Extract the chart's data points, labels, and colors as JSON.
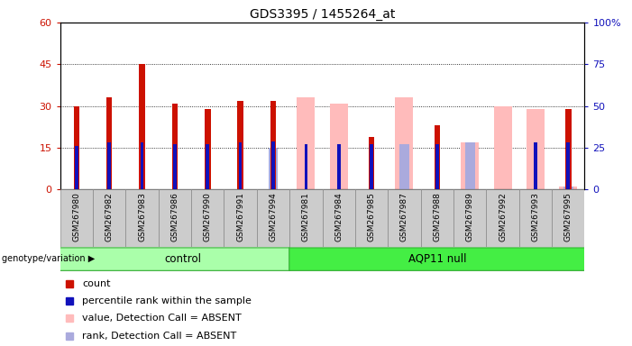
{
  "title": "GDS3395 / 1455264_at",
  "samples": [
    "GSM267980",
    "GSM267982",
    "GSM267983",
    "GSM267986",
    "GSM267990",
    "GSM267991",
    "GSM267994",
    "GSM267981",
    "GSM267984",
    "GSM267985",
    "GSM267987",
    "GSM267988",
    "GSM267989",
    "GSM267992",
    "GSM267993",
    "GSM267995"
  ],
  "n_control": 7,
  "count": [
    30,
    33,
    45,
    31,
    29,
    32,
    32,
    0,
    0,
    19,
    0,
    23,
    0,
    0,
    0,
    29
  ],
  "percentile_rank": [
    26,
    28,
    28,
    27,
    27,
    28,
    29,
    27,
    27,
    27,
    0,
    27,
    0,
    0,
    28,
    28
  ],
  "absent_value": [
    0,
    0,
    0,
    0,
    0,
    0,
    0,
    33,
    31,
    0,
    33,
    0,
    17,
    30,
    29,
    1
  ],
  "absent_rank": [
    0,
    0,
    0,
    0,
    0,
    0,
    25,
    0,
    0,
    0,
    27,
    0,
    28,
    0,
    0,
    2
  ],
  "bar_color_red": "#cc1100",
  "bar_color_blue": "#1111bb",
  "bar_color_pink": "#ffbbbb",
  "bar_color_light_blue": "#aaaadd",
  "control_color": "#aaffaa",
  "aqp11_color": "#44ee44",
  "bg_color": "#cccccc",
  "left_ylim": [
    0,
    60
  ],
  "right_ylim": [
    0,
    100
  ],
  "left_yticks": [
    0,
    15,
    30,
    45,
    60
  ],
  "right_yticks": [
    0,
    25,
    50,
    75,
    100
  ],
  "left_yticklabels": [
    "0",
    "15",
    "30",
    "45",
    "60"
  ],
  "right_yticklabels": [
    "0",
    "25",
    "50",
    "75",
    "100%"
  ],
  "group_label": "genotype/variation"
}
